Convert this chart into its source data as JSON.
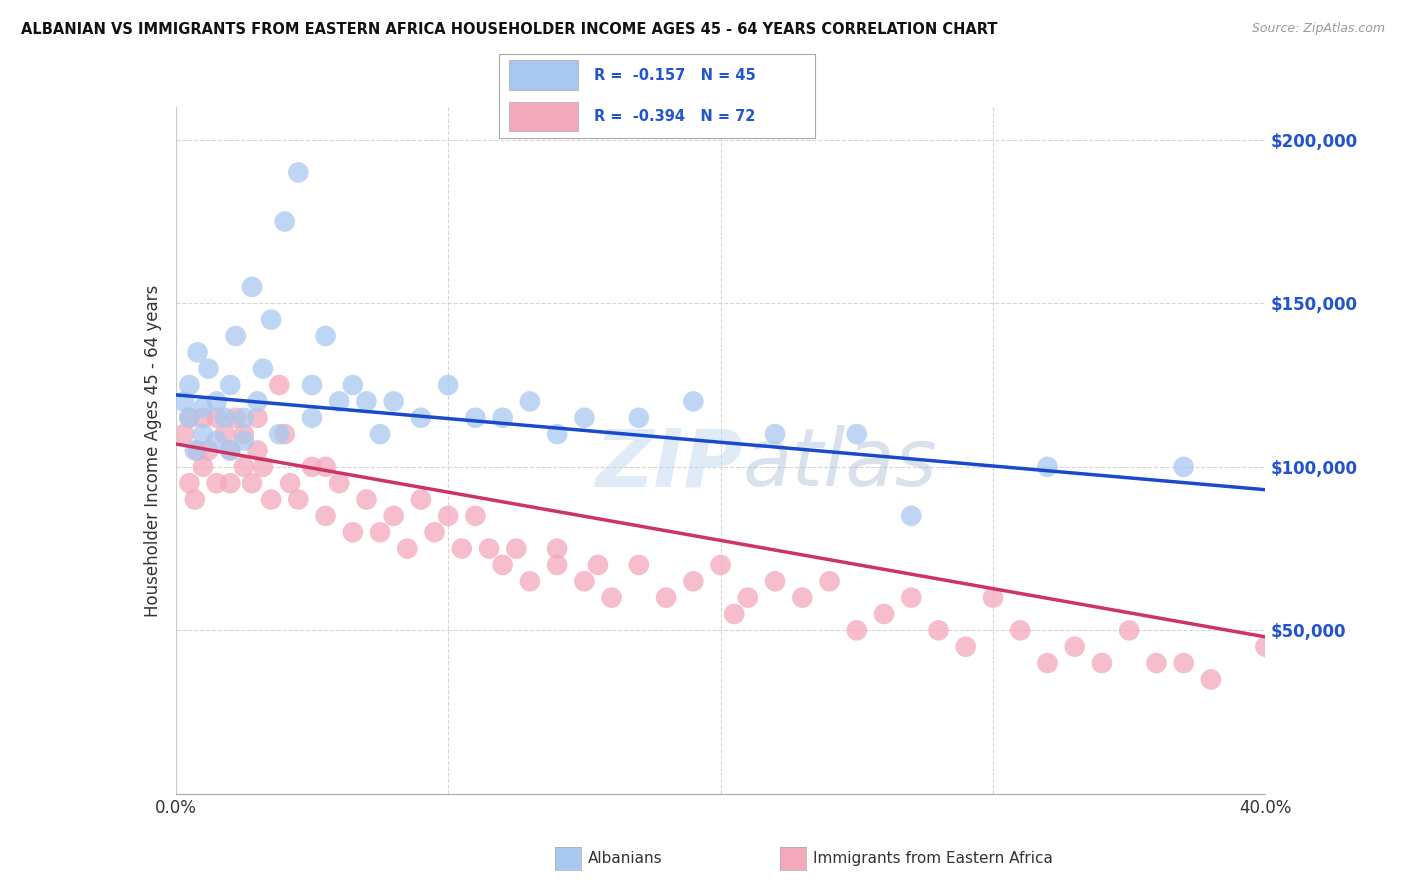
{
  "title": "ALBANIAN VS IMMIGRANTS FROM EASTERN AFRICA HOUSEHOLDER INCOME AGES 45 - 64 YEARS CORRELATION CHART",
  "source": "Source: ZipAtlas.com",
  "ylabel": "Householder Income Ages 45 - 64 years",
  "xlim": [
    0.0,
    40.0
  ],
  "ylim": [
    0,
    210000
  ],
  "yticks": [
    0,
    50000,
    100000,
    150000,
    200000
  ],
  "ytick_labels": [
    "",
    "$50,000",
    "$100,000",
    "$150,000",
    "$200,000"
  ],
  "r_albanian": -0.157,
  "n_albanian": 45,
  "r_eastern_africa": -0.394,
  "n_eastern_africa": 72,
  "legend_label_1": "Albanians",
  "legend_label_2": "Immigrants from Eastern Africa",
  "color_albanian": "#a8c8f0",
  "color_eastern_africa": "#f4a8bc",
  "line_color_albanian": "#1a4acc",
  "line_color_eastern_africa": "#cc3366",
  "background_color": "#ffffff",
  "grid_color": "#cccccc",
  "albanian_x": [
    0.3,
    0.5,
    0.5,
    0.7,
    0.8,
    1.0,
    1.0,
    1.2,
    1.5,
    1.5,
    1.8,
    2.0,
    2.0,
    2.2,
    2.5,
    2.5,
    2.8,
    3.0,
    3.2,
    3.5,
    3.8,
    4.0,
    4.5,
    5.0,
    5.0,
    5.5,
    6.0,
    6.5,
    7.0,
    7.5,
    8.0,
    9.0,
    10.0,
    11.0,
    12.0,
    13.0,
    14.0,
    15.0,
    17.0,
    19.0,
    22.0,
    25.0,
    27.0,
    32.0,
    37.0
  ],
  "albanian_y": [
    120000,
    115000,
    125000,
    105000,
    135000,
    118000,
    110000,
    130000,
    120000,
    108000,
    115000,
    125000,
    105000,
    140000,
    115000,
    108000,
    155000,
    120000,
    130000,
    145000,
    110000,
    175000,
    190000,
    125000,
    115000,
    140000,
    120000,
    125000,
    120000,
    110000,
    120000,
    115000,
    125000,
    115000,
    115000,
    120000,
    110000,
    115000,
    115000,
    120000,
    110000,
    110000,
    85000,
    100000,
    100000
  ],
  "eastern_africa_x": [
    0.3,
    0.5,
    0.5,
    0.7,
    0.8,
    1.0,
    1.0,
    1.2,
    1.5,
    1.5,
    1.8,
    2.0,
    2.0,
    2.2,
    2.5,
    2.5,
    2.8,
    3.0,
    3.0,
    3.2,
    3.5,
    3.8,
    4.0,
    4.2,
    4.5,
    5.0,
    5.5,
    5.5,
    6.0,
    6.5,
    7.0,
    7.5,
    8.0,
    8.5,
    9.0,
    9.5,
    10.0,
    10.5,
    11.0,
    11.5,
    12.0,
    12.5,
    13.0,
    14.0,
    14.0,
    15.0,
    15.5,
    16.0,
    17.0,
    18.0,
    19.0,
    20.0,
    20.5,
    21.0,
    22.0,
    23.0,
    24.0,
    25.0,
    26.0,
    27.0,
    28.0,
    29.0,
    30.0,
    31.0,
    32.0,
    33.0,
    34.0,
    35.0,
    36.0,
    37.0,
    38.0,
    40.0
  ],
  "eastern_africa_y": [
    110000,
    95000,
    115000,
    90000,
    105000,
    115000,
    100000,
    105000,
    115000,
    95000,
    110000,
    105000,
    95000,
    115000,
    100000,
    110000,
    95000,
    115000,
    105000,
    100000,
    90000,
    125000,
    110000,
    95000,
    90000,
    100000,
    100000,
    85000,
    95000,
    80000,
    90000,
    80000,
    85000,
    75000,
    90000,
    80000,
    85000,
    75000,
    85000,
    75000,
    70000,
    75000,
    65000,
    70000,
    75000,
    65000,
    70000,
    60000,
    70000,
    60000,
    65000,
    70000,
    55000,
    60000,
    65000,
    60000,
    65000,
    50000,
    55000,
    60000,
    50000,
    45000,
    60000,
    50000,
    40000,
    45000,
    40000,
    50000,
    40000,
    40000,
    35000,
    45000
  ]
}
